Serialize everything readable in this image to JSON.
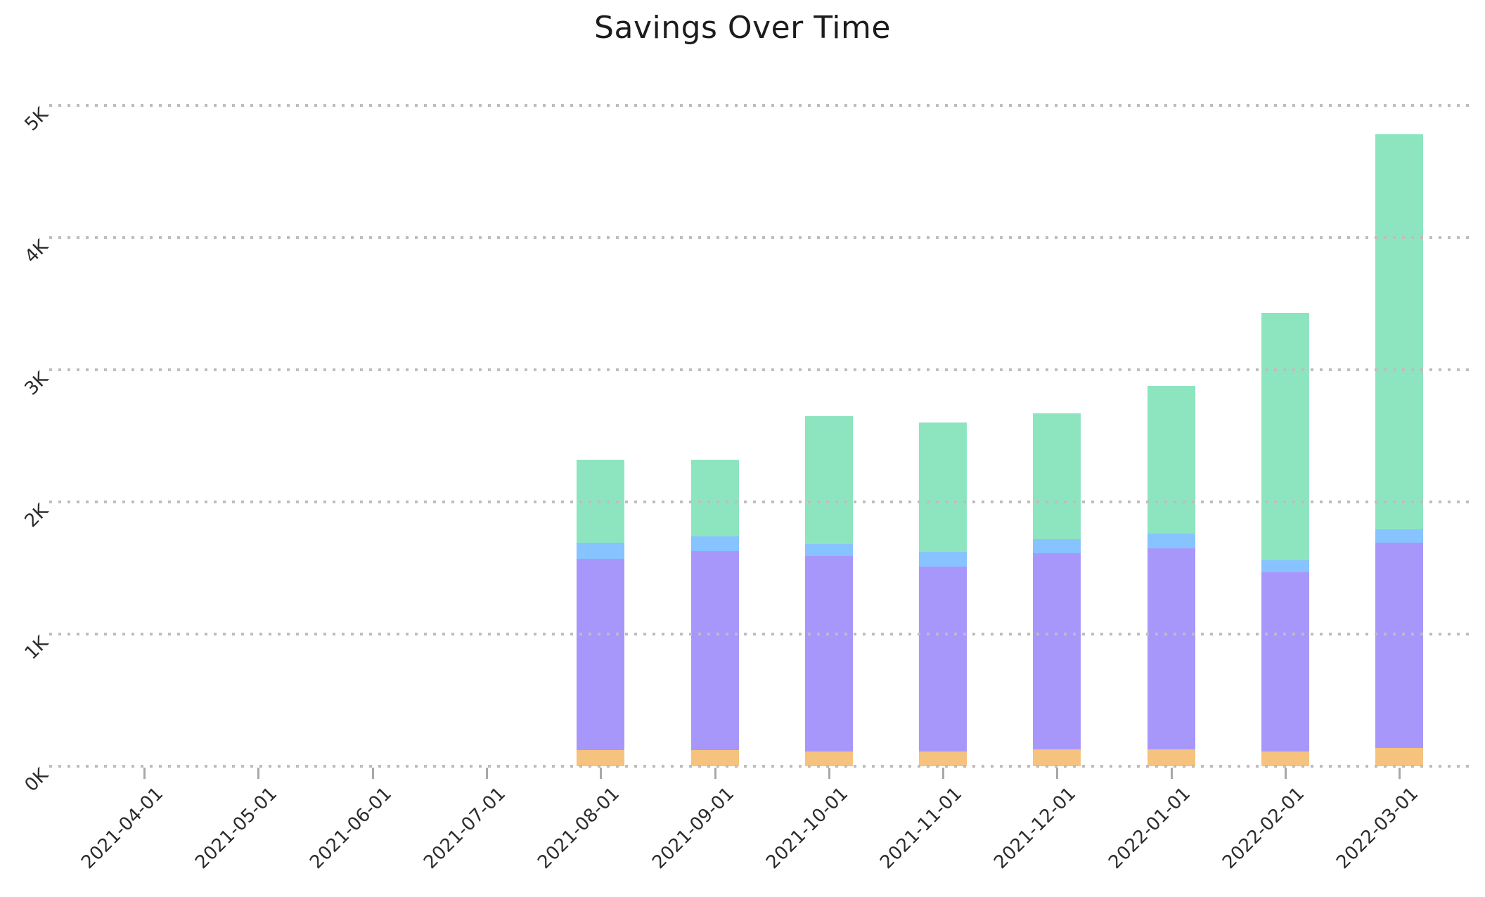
{
  "title": "Savings Over Time",
  "chart_data": {
    "type": "bar",
    "stacked": true,
    "title": "Savings Over Time",
    "xlabel": "",
    "ylabel": "",
    "x": [
      "2021-04-01",
      "2021-05-01",
      "2021-06-01",
      "2021-07-01",
      "2021-08-01",
      "2021-09-01",
      "2021-10-01",
      "2021-11-01",
      "2021-12-01",
      "2022-01-01",
      "2022-02-01",
      "2022-03-01"
    ],
    "series": [
      {
        "name": "segment-orange-bottom",
        "color": "#F5C37D",
        "values": [
          0,
          0,
          0,
          0,
          120,
          120,
          110,
          110,
          130,
          130,
          110,
          140
        ]
      },
      {
        "name": "segment-purple",
        "color": "#A897FA",
        "values": [
          0,
          0,
          0,
          0,
          1450,
          1510,
          1480,
          1400,
          1480,
          1520,
          1360,
          1550
        ]
      },
      {
        "name": "segment-blue",
        "color": "#87C3FF",
        "values": [
          0,
          0,
          0,
          0,
          120,
          110,
          90,
          110,
          110,
          110,
          90,
          100
        ]
      },
      {
        "name": "segment-green-top",
        "color": "#8DE5C0",
        "values": [
          0,
          0,
          0,
          0,
          630,
          580,
          970,
          980,
          950,
          1120,
          1870,
          2990
        ]
      }
    ],
    "stack_totals": [
      0,
      0,
      0,
      0,
      2320,
      2320,
      2650,
      2600,
      2670,
      2880,
      3430,
      4780
    ],
    "ylim": [
      0,
      5000
    ],
    "yticks": [
      "0K",
      "1K",
      "2K",
      "3K",
      "4K",
      "5K"
    ],
    "ytick_values": [
      0,
      1000,
      2000,
      3000,
      4000,
      5000
    ],
    "grid": "horizontal-dotted",
    "grid_color": "#c2bbbd",
    "legend": "none",
    "x_tick_rotation": 45,
    "y_tick_rotation": 45
  }
}
